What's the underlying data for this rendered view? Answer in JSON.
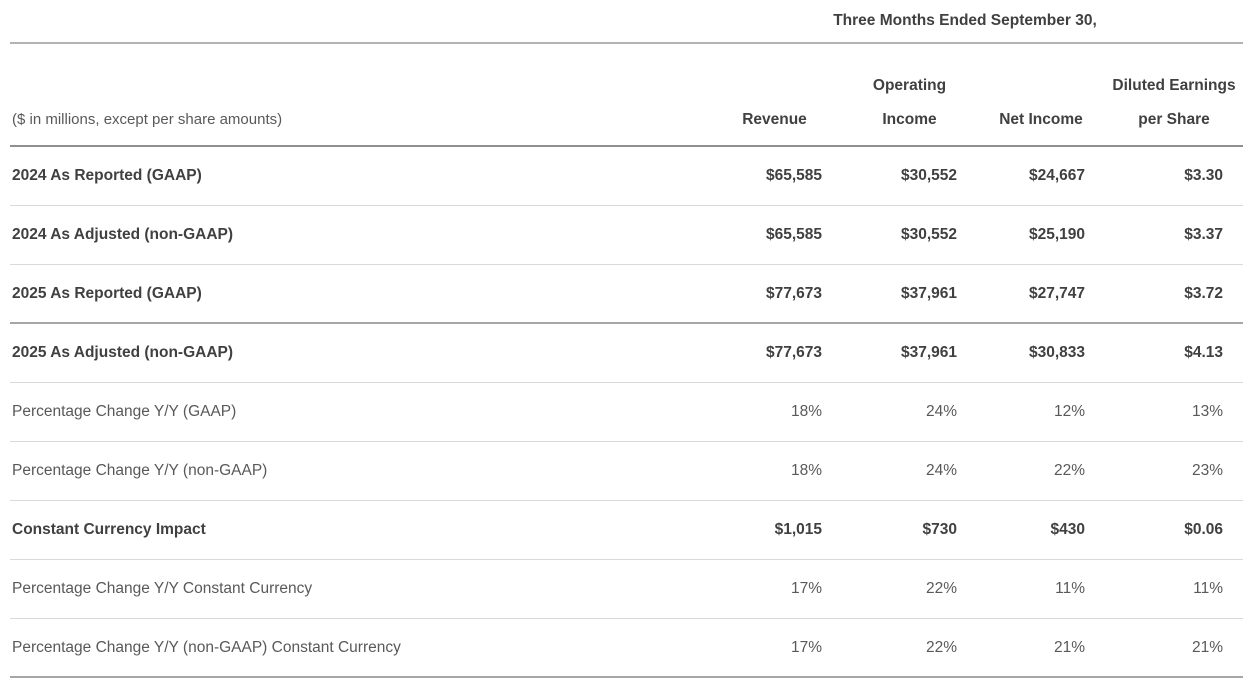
{
  "table": {
    "period_header": "Three Months Ended September 30,",
    "unit_note": "($ in millions, except per share amounts)",
    "columns": [
      {
        "line1": "",
        "line2": "Revenue"
      },
      {
        "line1": "Operating",
        "line2": "Income"
      },
      {
        "line1": "",
        "line2": "Net Income"
      },
      {
        "line1": "Diluted Earnings",
        "line2": "per Share"
      }
    ],
    "rows": [
      {
        "label": "2024 As Reported (GAAP)",
        "values": [
          "$65,585",
          "$30,552",
          "$24,667",
          "$3.30"
        ]
      },
      {
        "label": "2024 As Adjusted (non-GAAP)",
        "values": [
          "$65,585",
          "$30,552",
          "$25,190",
          "$3.37"
        ]
      },
      {
        "label": "2025 As Reported (GAAP)",
        "values": [
          "$77,673",
          "$37,961",
          "$27,747",
          "$3.72"
        ]
      },
      {
        "label": "2025 As Adjusted (non-GAAP)",
        "values": [
          "$77,673",
          "$37,961",
          "$30,833",
          "$4.13"
        ]
      },
      {
        "label": "Percentage Change Y/Y (GAAP)",
        "values": [
          "18%",
          "24%",
          "12%",
          "13%"
        ]
      },
      {
        "label": "Percentage Change Y/Y (non-GAAP)",
        "values": [
          "18%",
          "24%",
          "22%",
          "23%"
        ]
      },
      {
        "label": "Constant Currency Impact",
        "values": [
          "$1,015",
          "$730",
          "$430",
          "$0.06"
        ]
      },
      {
        "label": "Percentage Change Y/Y Constant Currency",
        "values": [
          "17%",
          "22%",
          "11%",
          "11%"
        ]
      },
      {
        "label": "Percentage Change Y/Y (non-GAAP) Constant Currency",
        "values": [
          "17%",
          "22%",
          "21%",
          "21%"
        ]
      }
    ]
  }
}
